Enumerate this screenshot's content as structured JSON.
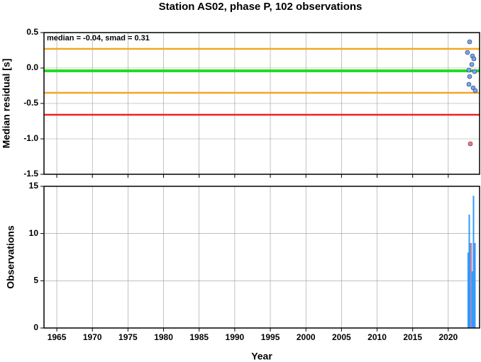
{
  "chart_data": [
    {
      "type": "scatter",
      "title": "Station AS02, phase P, 102 observations",
      "ylabel": "Median residual [s]",
      "annotation": "median = -0.04, smad = 0.31",
      "x": [
        2022.7,
        2023.0,
        2023.4,
        2023.6,
        2023.3,
        2022.9,
        2023.7,
        2023.0,
        2022.9,
        2023.5,
        2023.8,
        2023.1
      ],
      "values": [
        0.22,
        0.37,
        0.17,
        0.13,
        0.05,
        -0.03,
        -0.05,
        -0.12,
        -0.23,
        -0.28,
        -0.32,
        -1.07
      ],
      "colors": [
        "#6fa8f5",
        "#6fa8f5",
        "#6fa8f5",
        "#6fa8f5",
        "#6fa8f5",
        "#6fa8f5",
        "#6fa8f5",
        "#6fa8f5",
        "#6fa8f5",
        "#6fa8f5",
        "#6fa8f5",
        "#f57a6f"
      ],
      "hlines": [
        {
          "value": 0.27,
          "color": "#f5a623"
        },
        {
          "value": -0.04,
          "color": "#22dd22"
        },
        {
          "value": -0.35,
          "color": "#f5a623"
        },
        {
          "value": -0.66,
          "color": "#ee2222"
        }
      ],
      "xlim": [
        1963.2,
        2024.4
      ],
      "xticks": [
        1965,
        1970,
        1975,
        1980,
        1985,
        1990,
        1995,
        2000,
        2005,
        2010,
        2015,
        2020
      ],
      "ylim": [
        -1.5,
        0.5
      ],
      "yticks": [
        0.5,
        {
          "value": 0,
          "label": "0.0"
        },
        -0.5,
        {
          "value": -1,
          "label": "-1.0"
        },
        -1.5
      ],
      "grid": true
    },
    {
      "type": "bar",
      "xlabel": "Year",
      "ylabel": "Observations",
      "x": [
        2022.8,
        2022.95,
        2023.05,
        2023.25,
        2023.35,
        2023.55,
        2023.75
      ],
      "values": [
        8,
        12,
        9,
        9,
        6,
        14,
        9
      ],
      "colors": [
        "#3399ff",
        "#3399ff",
        "#3399ff",
        "#f08080",
        "#3399ff",
        "#3399ff",
        "#3399ff"
      ],
      "xlim": [
        1963.2,
        2024.4
      ],
      "xticks": [
        1965,
        1970,
        1975,
        1980,
        1985,
        1990,
        1995,
        2000,
        2005,
        2010,
        2015,
        2020
      ],
      "ylim": [
        0,
        15
      ],
      "yticks": [
        0,
        5,
        10,
        15
      ],
      "grid": true
    }
  ]
}
